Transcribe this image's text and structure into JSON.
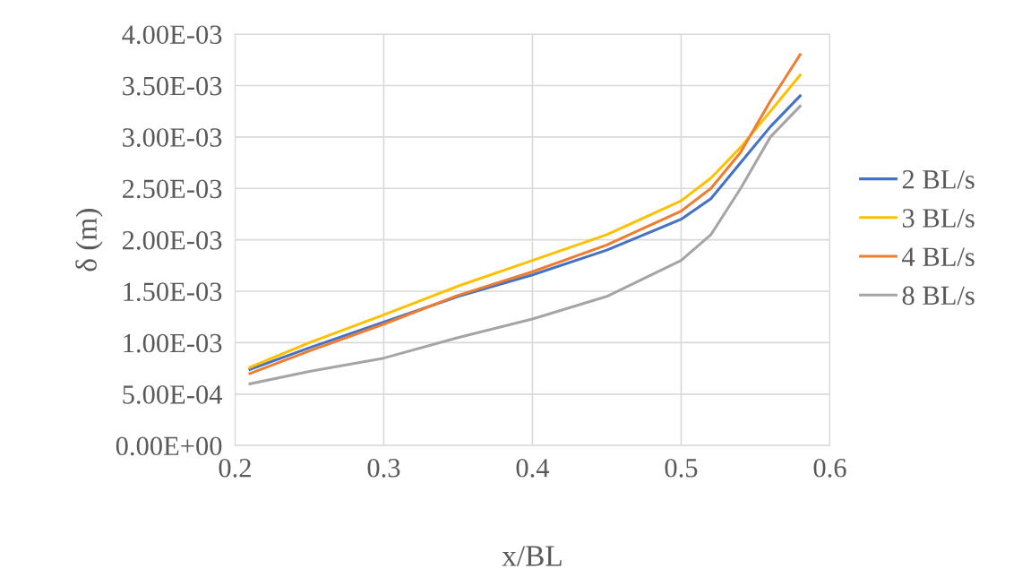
{
  "chart_data": {
    "type": "line",
    "xlabel": "x/BL",
    "ylabel": "δ (m)",
    "x": [
      0.21,
      0.25,
      0.3,
      0.35,
      0.4,
      0.45,
      0.5,
      0.52,
      0.54,
      0.56,
      0.58
    ],
    "series": [
      {
        "name": "2 BL/s",
        "color": "#4472c4",
        "values": [
          0.00074,
          0.00095,
          0.0012,
          0.00145,
          0.00166,
          0.0019,
          0.0022,
          0.0024,
          0.00275,
          0.0031,
          0.0034
        ]
      },
      {
        "name": "3 BL/s",
        "color": "#ffc000",
        "values": [
          0.00076,
          0.001,
          0.00127,
          0.00155,
          0.0018,
          0.00205,
          0.00238,
          0.0026,
          0.0029,
          0.00325,
          0.0036
        ]
      },
      {
        "name": "4 BL/s",
        "color": "#ed7d31",
        "values": [
          0.0007,
          0.00092,
          0.00118,
          0.00146,
          0.00169,
          0.00195,
          0.00228,
          0.0025,
          0.00285,
          0.00335,
          0.0038
        ]
      },
      {
        "name": "8 BL/s",
        "color": "#a5a5a5",
        "values": [
          0.0006,
          0.00072,
          0.00085,
          0.00105,
          0.00123,
          0.00145,
          0.0018,
          0.00205,
          0.0025,
          0.003,
          0.0033
        ]
      }
    ],
    "xlim": [
      0.2,
      0.6
    ],
    "xticks": [
      0.2,
      0.3,
      0.4,
      0.5,
      0.6
    ],
    "ylim": [
      0,
      0.004
    ],
    "yticks": [
      {
        "value": 0,
        "label": "0.00E+00"
      },
      {
        "value": 0.0005,
        "label": "5.00E-04"
      },
      {
        "value": 0.001,
        "label": "1.00E-03"
      },
      {
        "value": 0.0015,
        "label": "1.50E-03"
      },
      {
        "value": 0.002,
        "label": "2.00E-03"
      },
      {
        "value": 0.0025,
        "label": "2.50E-03"
      },
      {
        "value": 0.003,
        "label": "3.00E-03"
      },
      {
        "value": 0.0035,
        "label": "3.50E-03"
      },
      {
        "value": 0.004,
        "label": "4.00E-03"
      }
    ],
    "grid": true,
    "legend": "right",
    "marker": "none",
    "line_style": "solid"
  }
}
